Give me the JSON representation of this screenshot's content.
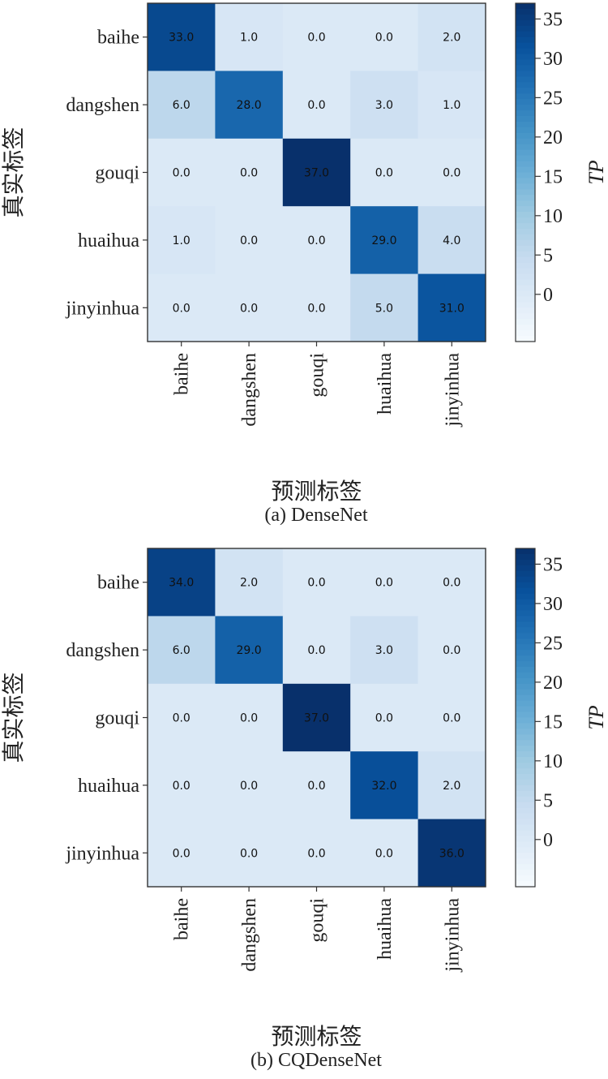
{
  "chart_data": [
    {
      "type": "heatmap",
      "caption": "(a) DenseNet",
      "xlabel": "预测标签",
      "ylabel": "真实标签",
      "x_categories": [
        "baihe",
        "dangshen",
        "gouqi",
        "huaihua",
        "jinyinhua"
      ],
      "y_categories": [
        "baihe",
        "dangshen",
        "gouqi",
        "huaihua",
        "jinyinhua"
      ],
      "values": [
        [
          33.0,
          1.0,
          0.0,
          0.0,
          2.0
        ],
        [
          6.0,
          28.0,
          0.0,
          3.0,
          1.0
        ],
        [
          0.0,
          0.0,
          37.0,
          0.0,
          0.0
        ],
        [
          1.0,
          0.0,
          0.0,
          29.0,
          4.0
        ],
        [
          0.0,
          0.0,
          0.0,
          5.0,
          31.0
        ]
      ],
      "value_labels": [
        [
          "33.0",
          "1.0",
          "0.0",
          "0.0",
          "2.0"
        ],
        [
          "6.0",
          "28.0",
          "0.0",
          "3.0",
          "1.0"
        ],
        [
          "0.0",
          "0.0",
          "37.0",
          "0.0",
          "0.0"
        ],
        [
          "1.0",
          "0.0",
          "0.0",
          "29.0",
          "4.0"
        ],
        [
          "0.0",
          "0.0",
          "0.0",
          "5.0",
          "31.0"
        ]
      ],
      "colorbar": {
        "label": "TP",
        "ticks": [
          0,
          5,
          10,
          15,
          20,
          25,
          30,
          35
        ],
        "range": [
          -6,
          37
        ],
        "colormap": "Blues"
      }
    },
    {
      "type": "heatmap",
      "caption": "(b) CQDenseNet",
      "xlabel": "预测标签",
      "ylabel": "真实标签",
      "x_categories": [
        "baihe",
        "dangshen",
        "gouqi",
        "huaihua",
        "jinyinhua"
      ],
      "y_categories": [
        "baihe",
        "dangshen",
        "gouqi",
        "huaihua",
        "jinyinhua"
      ],
      "values": [
        [
          34.0,
          2.0,
          0.0,
          0.0,
          0.0
        ],
        [
          6.0,
          29.0,
          0.0,
          3.0,
          0.0
        ],
        [
          0.0,
          0.0,
          37.0,
          0.0,
          0.0
        ],
        [
          0.0,
          0.0,
          0.0,
          32.0,
          2.0
        ],
        [
          0.0,
          0.0,
          0.0,
          0.0,
          36.0
        ]
      ],
      "value_labels": [
        [
          "34.0",
          "2.0",
          "0.0",
          "0.0",
          "0.0"
        ],
        [
          "6.0",
          "29.0",
          "0.0",
          "3.0",
          "0.0"
        ],
        [
          "0.0",
          "0.0",
          "37.0",
          "0.0",
          "0.0"
        ],
        [
          "0.0",
          "0.0",
          "0.0",
          "32.0",
          "2.0"
        ],
        [
          "0.0",
          "0.0",
          "0.0",
          "0.0",
          "36.0"
        ]
      ],
      "colorbar": {
        "label": "TP",
        "ticks": [
          0,
          5,
          10,
          15,
          20,
          25,
          30,
          35
        ],
        "range": [
          -6,
          37
        ],
        "colormap": "Blues"
      }
    }
  ]
}
